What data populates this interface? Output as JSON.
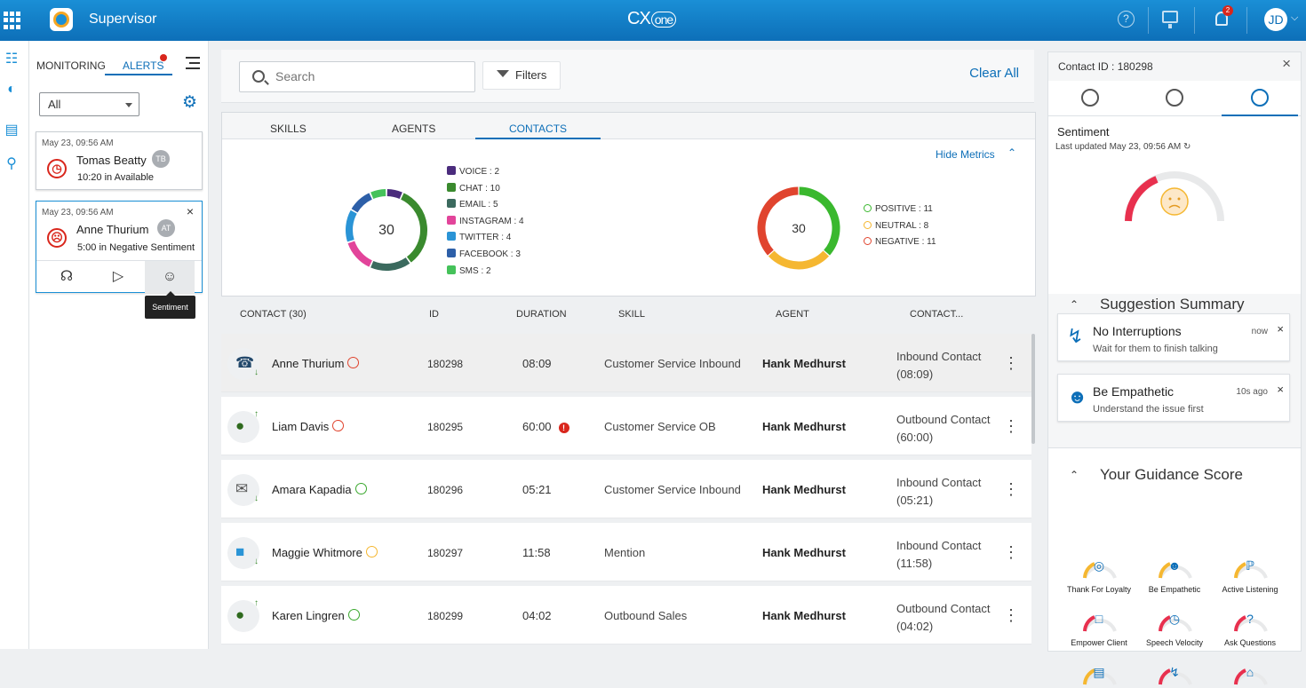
{
  "topbar": {
    "app_title": "Supervisor",
    "brand": "CX",
    "brand_suffix": "one",
    "help_glyph": "?",
    "notification_count": "2",
    "user_initials": "JD"
  },
  "alerts_panel": {
    "tabs": [
      "MONITORING",
      "ALERTS"
    ],
    "filter_value": "All",
    "cards": [
      {
        "time": "May 23, 09:56 AM",
        "name": "Tomas Beatty",
        "initials": "TB",
        "status": "10:20 in Available",
        "icon": "clock-icon"
      },
      {
        "time": "May 23, 09:56 AM",
        "name": "Anne Thurium",
        "initials": "AT",
        "status": "5:00 in Negative Sentiment",
        "icon": "sad-face-icon"
      }
    ],
    "tooltip": "Sentiment"
  },
  "search": {
    "placeholder": "Search",
    "filters_label": "Filters",
    "clear_all_label": "Clear All"
  },
  "metrics": {
    "tabs": [
      "SKILLS",
      "AGENTS",
      "CONTACTS"
    ],
    "active_tab": "CONTACTS",
    "hide_metrics_label": "Hide Metrics",
    "channel_total": "30",
    "sentiment_total": "30",
    "channels": [
      {
        "label": "VOICE : 2",
        "value": 2,
        "color": "#4b2c7d"
      },
      {
        "label": "CHAT : 10",
        "value": 10,
        "color": "#3a8a2e"
      },
      {
        "label": "EMAIL : 5",
        "value": 5,
        "color": "#3b6a5e"
      },
      {
        "label": "INSTAGRAM : 4",
        "value": 4,
        "color": "#e2449a"
      },
      {
        "label": "TWITTER : 4",
        "value": 4,
        "color": "#2a94d6"
      },
      {
        "label": "FACEBOOK : 3",
        "value": 3,
        "color": "#2d5fa8"
      },
      {
        "label": "SMS : 2",
        "value": 2,
        "color": "#45c25a"
      }
    ],
    "sentiments": [
      {
        "label": "POSITIVE : 11",
        "value": 11,
        "color": "#3ab82e"
      },
      {
        "label": "NEUTRAL : 8",
        "value": 8,
        "color": "#f5b731"
      },
      {
        "label": "NEGATIVE : 11",
        "value": 11,
        "color": "#e0442e"
      }
    ]
  },
  "table": {
    "headers": [
      "CONTACT (30)",
      "ID",
      "DURATION",
      "SKILL",
      "AGENT",
      "CONTACT..."
    ],
    "rows": [
      {
        "name": "Anne Thurium",
        "sentiment": "negative",
        "id": "180298",
        "duration": "08:09",
        "warn": false,
        "skill": "Customer Service Inbound",
        "agent": "Hank Medhurst",
        "type": "Inbound Contact",
        "type_dur": "(08:09)",
        "channel": "phone-icon"
      },
      {
        "name": "Liam Davis",
        "sentiment": "negative",
        "id": "180295",
        "duration": "60:00",
        "warn": true,
        "skill": "Customer Service OB",
        "agent": "Hank Medhurst",
        "type": "Outbound Contact",
        "type_dur": "(60:00)",
        "channel": "chat-icon"
      },
      {
        "name": "Amara Kapadia",
        "sentiment": "positive",
        "id": "180296",
        "duration": "05:21",
        "warn": false,
        "skill": "Customer Service Inbound",
        "agent": "Hank Medhurst",
        "type": "Inbound Contact",
        "type_dur": "(05:21)",
        "channel": "email-icon"
      },
      {
        "name": "Maggie Whitmore",
        "sentiment": "neutral",
        "id": "180297",
        "duration": "11:58",
        "warn": false,
        "skill": "Mention",
        "agent": "Hank Medhurst",
        "type": "Inbound Contact",
        "type_dur": "(11:58)",
        "channel": "twitter-icon"
      },
      {
        "name": "Karen Lingren",
        "sentiment": "positive",
        "id": "180299",
        "duration": "04:02",
        "warn": false,
        "skill": "Outbound Sales",
        "agent": "Hank Medhurst",
        "type": "Outbound Contact",
        "type_dur": "(04:02)",
        "channel": "chat-icon"
      }
    ]
  },
  "right_panel": {
    "contact_id": "Contact ID : 180298",
    "sentiment_title": "Sentiment",
    "last_updated": "Last updated May 23, 09:56 AM",
    "suggestion_title": "Suggestion Summary",
    "suggestions": [
      {
        "title": "No Interruptions",
        "subtitle": "Wait for them to finish talking",
        "when": "now",
        "icon": "lightning-icon"
      },
      {
        "title": "Be Empathetic",
        "subtitle": "Understand the issue first",
        "when": "10s ago",
        "icon": "person-check-icon"
      }
    ],
    "guidance_title": "Your Guidance Score",
    "guidance_items": [
      {
        "label": "Thank For Loyalty",
        "icon": "ribbon-icon"
      },
      {
        "label": "Be Empathetic",
        "icon": "person-check-icon"
      },
      {
        "label": "Active Listening",
        "icon": "ear-icon"
      },
      {
        "label": "Empower Client",
        "icon": "book-icon"
      },
      {
        "label": "Speech Velocity",
        "icon": "speed-clock-icon"
      },
      {
        "label": "Ask Questions",
        "icon": "question-icon"
      },
      {
        "label": "",
        "icon": "message-icon"
      },
      {
        "label": "",
        "icon": "lightning-icon"
      },
      {
        "label": "",
        "icon": "home-icon"
      }
    ]
  }
}
